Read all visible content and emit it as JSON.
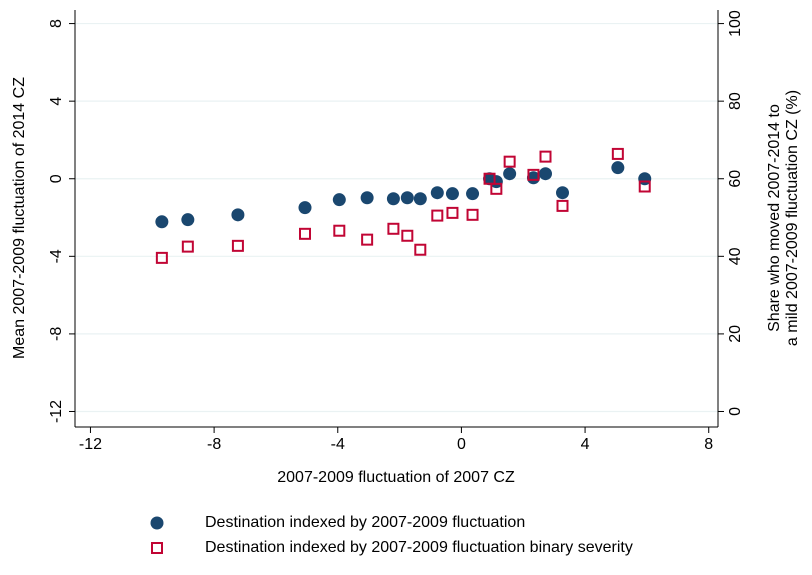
{
  "chart_data": {
    "type": "scatter",
    "xlabel": "2007-2009 fluctuation of 2007 CZ",
    "ylabel": "Mean 2007-2009 fluctuation of 2014 CZ",
    "y2label": [
      "Share who moved 2007-2014 to",
      "a mild 2007-2009 fluctuation CZ (%)"
    ],
    "x": [
      -9.69,
      -8.85,
      -7.23,
      -5.06,
      -3.95,
      -3.05,
      -2.2,
      -1.75,
      -1.33,
      -0.78,
      -0.29,
      0.36,
      0.91,
      1.13,
      1.56,
      2.33,
      2.72,
      3.27,
      5.06,
      5.93
    ],
    "series": [
      {
        "name": "Destination indexed by 2007-2009 fluctuation",
        "color": "#1a476f",
        "marker": "circle",
        "values": [
          -2.22,
          -2.11,
          -1.86,
          -1.49,
          -1.08,
          -0.98,
          -1.03,
          -0.98,
          -1.03,
          -0.72,
          -0.77,
          -0.77,
          0,
          -0.15,
          0.26,
          0.05,
          0.26,
          -0.72,
          0.57,
          0
        ]
      },
      {
        "name": "Destination indexed by 2007-2009 fluctuation binary severity",
        "color": "#c10534",
        "marker": "square",
        "axis": "y2",
        "values": [
          39.6,
          42.5,
          42.7,
          45.8,
          46.6,
          44.3,
          47.1,
          45.3,
          41.7,
          50.5,
          51.2,
          50.7,
          60,
          57.4,
          64.4,
          61,
          65.7,
          53,
          66.4,
          58
        ]
      }
    ],
    "xlim": [
      -12.5,
      8.3
    ],
    "xticks": [
      -12,
      -8,
      -4,
      0,
      4,
      8
    ],
    "ylim": [
      -12.8,
      8.7
    ],
    "yticks": [
      -12,
      -8,
      -4,
      0,
      4,
      8
    ],
    "y2lim": [
      -4,
      103.5
    ],
    "y2ticks": [
      0,
      20,
      40,
      60,
      80,
      100
    ],
    "grid": true
  }
}
